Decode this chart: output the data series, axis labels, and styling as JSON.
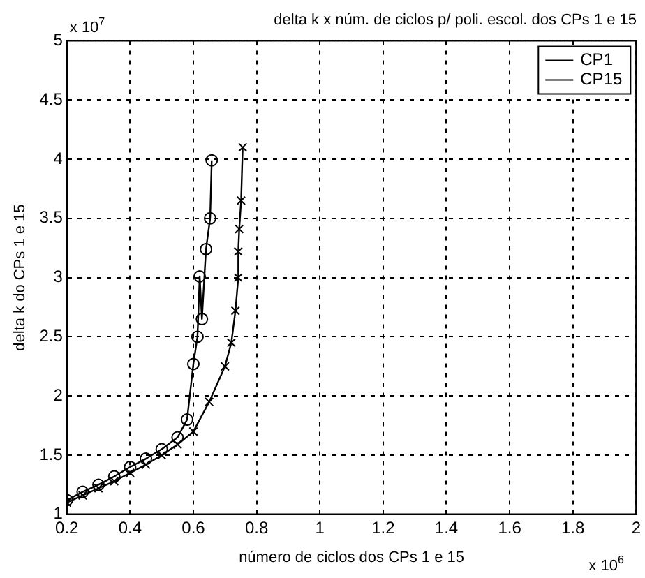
{
  "chart_data": {
    "type": "line",
    "title": "delta k x núm. de ciclos p/ poli. escol. dos CPs 1 e 15",
    "xlabel": "número de ciclos dos CPs 1 e 15",
    "ylabel": "delta k do CPs 1 e 15",
    "annotations": [
      "x 10$^{7}$",
      "x 10$^{6}$"
    ],
    "series": [
      {
        "name": "CP1",
        "color": "#000000",
        "marker": "circle",
        "x": [
          0.2,
          0.25,
          0.3,
          0.35,
          0.4,
          0.45,
          0.5,
          0.55,
          0.58,
          0.6,
          0.613,
          0.62,
          0.627,
          0.64,
          0.653,
          0.658
        ],
        "values": [
          1.12,
          1.19,
          1.25,
          1.32,
          1.4,
          1.47,
          1.55,
          1.65,
          1.8,
          2.27,
          2.5,
          3.01,
          2.65,
          3.24,
          3.5,
          3.99
        ]
      },
      {
        "name": "CP15",
        "color": "#000000",
        "marker": "cross",
        "x": [
          0.2,
          0.25,
          0.3,
          0.35,
          0.4,
          0.45,
          0.5,
          0.55,
          0.6,
          0.65,
          0.7,
          0.72,
          0.733,
          0.742,
          0.742,
          0.745,
          0.751,
          0.756
        ],
        "values": [
          1.1,
          1.16,
          1.22,
          1.28,
          1.35,
          1.42,
          1.5,
          1.59,
          1.7,
          1.95,
          2.25,
          2.45,
          2.72,
          3.0,
          3.22,
          3.41,
          3.65,
          4.1
        ]
      }
    ],
    "xlim": [
      0.2,
      2
    ],
    "xticks": [
      0.2,
      0.4,
      0.6,
      0.8,
      1,
      1.2,
      1.4,
      1.6,
      1.8,
      2
    ],
    "ylim": [
      1,
      5
    ],
    "yticks": [
      1,
      1.5,
      2,
      2.5,
      3,
      3.5,
      4,
      4.5,
      5
    ],
    "grid": true,
    "legend": "top right",
    "line_style": "solid"
  }
}
